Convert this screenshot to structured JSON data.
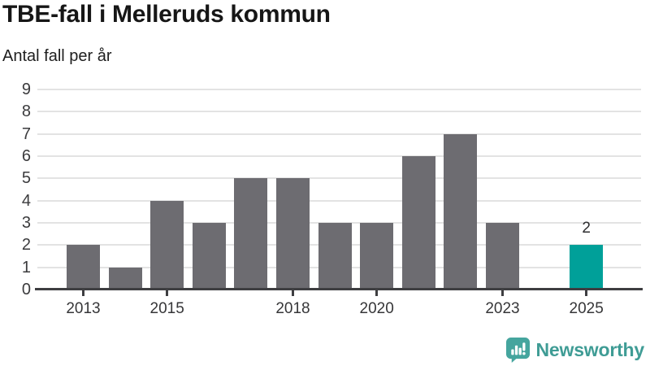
{
  "header": {
    "title": "TBE-fall i Melleruds kommun",
    "subtitle": "Antal fall per år"
  },
  "chart_data": {
    "type": "bar",
    "title": "TBE-fall i Melleruds kommun",
    "subtitle_ylabel": "Antal fall per år",
    "categories": [
      "2013",
      "2014",
      "2015",
      "2016",
      "2017",
      "2018",
      "2019",
      "2020",
      "2021",
      "2022",
      "2023",
      "2024",
      "2025"
    ],
    "values": [
      2,
      1,
      4,
      3,
      5,
      5,
      3,
      3,
      6,
      7,
      3,
      0,
      2
    ],
    "bar_labels": [
      "",
      "",
      "",
      "",
      "",
      "",
      "",
      "",
      "",
      "",
      "",
      "",
      "2"
    ],
    "highlight_index": 12,
    "ylim": [
      0,
      9
    ],
    "yticks": [
      0,
      1,
      2,
      3,
      4,
      5,
      6,
      7,
      8,
      9
    ],
    "xtick_indices": [
      0,
      2,
      5,
      7,
      10,
      12
    ],
    "xtick_labels": [
      "2013",
      "2015",
      "2018",
      "2020",
      "2023",
      "2025"
    ],
    "grid": "horizontal",
    "legend": "none",
    "colors": {
      "bar": "#6d6c71",
      "highlight": "#00a099",
      "axis": "#3e3e41",
      "grid": "#e3e3e3",
      "ytick_text": "#3b3b3d",
      "xtick_text": "#363638",
      "value_label_text": "#2e2e30"
    }
  },
  "branding": {
    "name": "Newsworthy",
    "logo_icon": "newsworthy-chart-bubble-icon",
    "wordmark_color": "#3f9c95",
    "icon_color": "#45a59e"
  }
}
